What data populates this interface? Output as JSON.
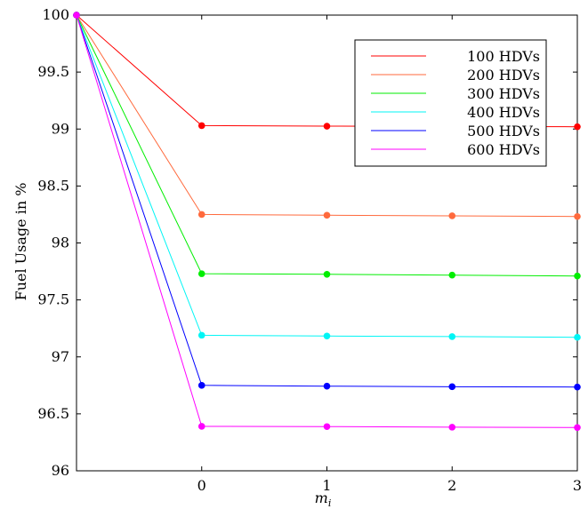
{
  "chart_data": {
    "type": "line",
    "title": "",
    "xlabel": "m",
    "xlabel_subscript": "i",
    "ylabel": "Fuel Usage in %",
    "x": [
      -1,
      0,
      1,
      2,
      3
    ],
    "x_ticks": [
      0,
      1,
      2,
      3
    ],
    "x_tick_labels": [
      "0",
      "1",
      "2",
      "3"
    ],
    "xlim": [
      -1,
      3
    ],
    "ylim": [
      96,
      100
    ],
    "y_ticks": [
      96,
      96.5,
      97,
      97.5,
      98,
      98.5,
      99,
      99.5,
      100
    ],
    "y_tick_labels": [
      "96",
      "96.5",
      "97",
      "97.5",
      "98",
      "98.5",
      "99",
      "99.5",
      "100"
    ],
    "grid": false,
    "legend_position": "top-right",
    "series": [
      {
        "name": "100 HDVs",
        "color": "#ff0000",
        "values": [
          100,
          99.03,
          99.025,
          99.022,
          99.02
        ]
      },
      {
        "name": "200 HDVs",
        "color": "#ff6a3d",
        "values": [
          100,
          98.25,
          98.243,
          98.238,
          98.232
        ]
      },
      {
        "name": "300 HDVs",
        "color": "#00ee00",
        "values": [
          100,
          97.73,
          97.725,
          97.718,
          97.71
        ]
      },
      {
        "name": "400 HDVs",
        "color": "#00f5f5",
        "values": [
          100,
          97.19,
          97.183,
          97.178,
          97.172
        ]
      },
      {
        "name": "500 HDVs",
        "color": "#0000ff",
        "values": [
          100,
          96.75,
          96.743,
          96.738,
          96.735
        ]
      },
      {
        "name": "600 HDVs",
        "color": "#ff00ff",
        "values": [
          100,
          96.39,
          96.388,
          96.383,
          96.38
        ]
      }
    ]
  }
}
